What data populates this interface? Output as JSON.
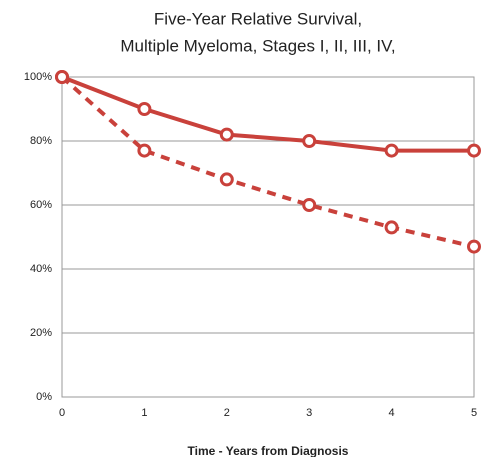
{
  "chart_data": {
    "type": "line",
    "title": [
      "Five-Year Relative Survival,",
      "Multiple Myeloma, Stages I, II, III, IV,"
    ],
    "x_label": "Time - Years from Diagnosis",
    "x": [
      0,
      1,
      2,
      3,
      4,
      5
    ],
    "series": [
      {
        "color": "#c9413b",
        "dash": false,
        "values": [
          100,
          90,
          82,
          80,
          77,
          77
        ]
      },
      {
        "color": "#c9413b",
        "dash": true,
        "values": [
          100,
          77,
          68,
          60,
          53,
          47
        ]
      }
    ],
    "xlim": [
      0,
      5
    ],
    "xticks": [
      0,
      1,
      2,
      3,
      4,
      5
    ],
    "ylim": [
      0,
      100
    ],
    "yticks": [
      {
        "value": 0,
        "label": "0%"
      },
      {
        "value": 20,
        "label": "20%"
      },
      {
        "value": 40,
        "label": "40%"
      },
      {
        "value": 60,
        "label": "60%"
      },
      {
        "value": 80,
        "label": "80%"
      },
      {
        "value": 100,
        "label": "100%"
      }
    ],
    "grid": true
  }
}
